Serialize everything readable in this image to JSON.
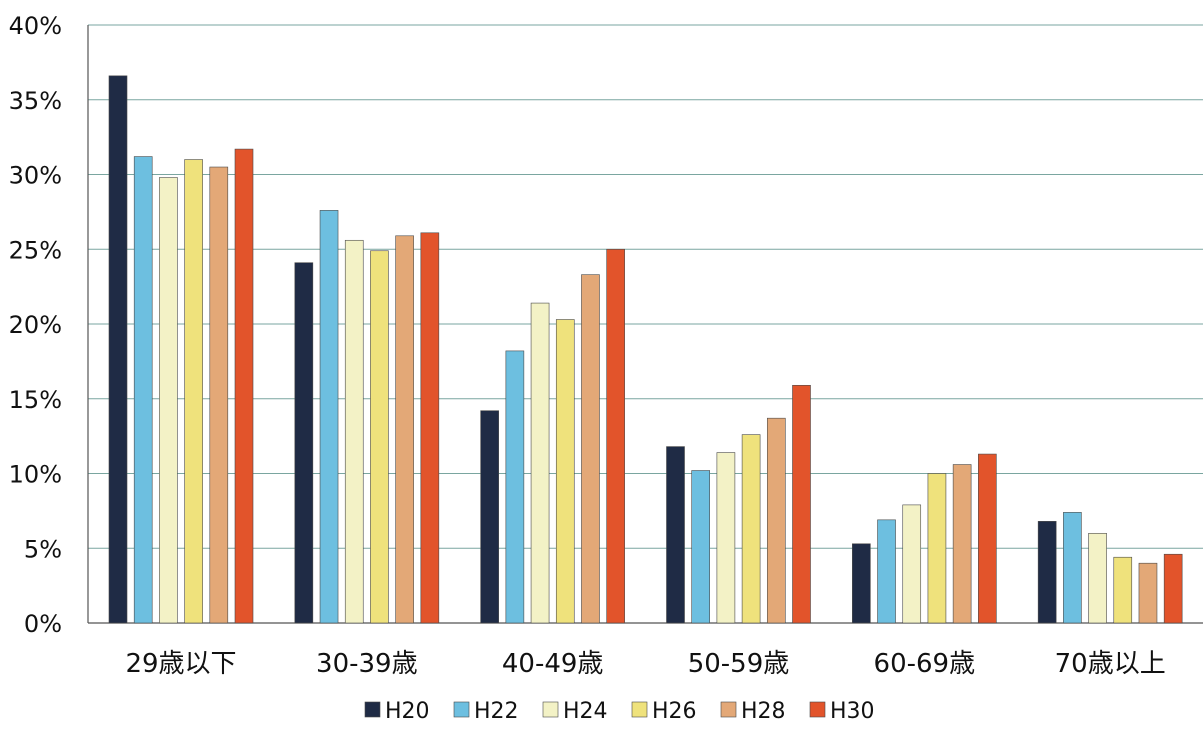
{
  "chart_data": {
    "type": "bar",
    "categories": [
      "29歳以下",
      "30-39歳",
      "40-49歳",
      "50-59歳",
      "60-69歳",
      "70歳以上"
    ],
    "ylim": [
      0,
      40
    ],
    "yticks": [
      "0%",
      "5%",
      "10%",
      "15%",
      "20%",
      "25%",
      "30%",
      "35%",
      "40%"
    ],
    "grid": true,
    "legend_position": "bottom",
    "series": [
      {
        "name": "H20",
        "color": "#1f2b45",
        "values": [
          36.6,
          24.1,
          14.2,
          11.8,
          5.3,
          6.8
        ]
      },
      {
        "name": "H22",
        "color": "#6dbfe0",
        "values": [
          31.2,
          27.6,
          18.2,
          10.2,
          6.9,
          7.4
        ]
      },
      {
        "name": "H24",
        "color": "#f3f2c6",
        "values": [
          29.8,
          25.6,
          21.4,
          11.4,
          7.9,
          6.0
        ]
      },
      {
        "name": "H26",
        "color": "#efe27c",
        "values": [
          31.0,
          24.9,
          20.3,
          12.6,
          10.0,
          4.4
        ]
      },
      {
        "name": "H28",
        "color": "#e3a877",
        "values": [
          30.5,
          25.9,
          23.3,
          13.7,
          10.6,
          4.0
        ]
      },
      {
        "name": "H30",
        "color": "#e2542b",
        "values": [
          31.7,
          26.1,
          25.0,
          15.9,
          11.3,
          4.6
        ]
      }
    ]
  }
}
